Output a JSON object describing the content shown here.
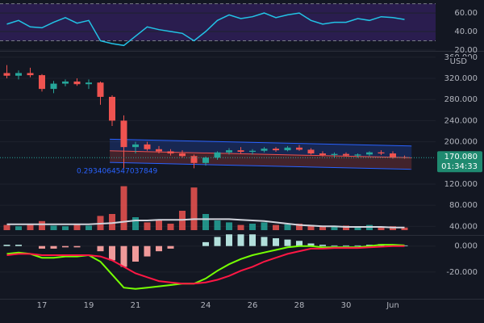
{
  "chart_data": [
    {
      "type": "line",
      "series": [
        {
          "color": "#22c3e6",
          "values": [
            48,
            52,
            45,
            44,
            50,
            55,
            49,
            52,
            30,
            27,
            25,
            35,
            45,
            42,
            40,
            38,
            30,
            40,
            52,
            58,
            54,
            56,
            60,
            55,
            58,
            60,
            52,
            48,
            50,
            50,
            54,
            52,
            56,
            55,
            53
          ]
        }
      ],
      "ylim": [
        20,
        74
      ],
      "yticks": [
        {
          "value": 60,
          "label": "60.00"
        },
        {
          "value": 40,
          "label": "40.00"
        },
        {
          "value": 20,
          "label": "20.00"
        }
      ],
      "band": [
        30,
        70
      ],
      "band_color": "#2a1d4f"
    },
    {
      "type": "candlestick",
      "x": [
        15.5,
        16,
        16.5,
        17,
        17.5,
        18,
        18.5,
        19,
        19.5,
        20,
        20.5,
        21,
        21.5,
        22,
        22.5,
        23,
        23.5,
        24,
        24.5,
        25,
        25.5,
        26,
        26.5,
        27,
        27.5,
        28,
        28.5,
        29,
        29.5,
        30,
        30.5,
        31,
        31.5,
        32,
        32.5
      ],
      "open": [
        330,
        325,
        330,
        326,
        300,
        310,
        314,
        309,
        312,
        285,
        240,
        190,
        195,
        186,
        182,
        178,
        173,
        160,
        170,
        180,
        184,
        181,
        183,
        187,
        184,
        189,
        185,
        178,
        175,
        177,
        174,
        176,
        180,
        178,
        171
      ],
      "high": [
        345,
        335,
        340,
        328,
        315,
        318,
        320,
        318,
        314,
        288,
        250,
        200,
        200,
        192,
        186,
        184,
        176,
        172,
        182,
        188,
        190,
        186,
        190,
        190,
        192,
        194,
        188,
        182,
        180,
        180,
        178,
        182,
        184,
        182,
        174
      ],
      "low": [
        320,
        318,
        322,
        295,
        292,
        305,
        306,
        300,
        270,
        230,
        150,
        178,
        183,
        178,
        174,
        170,
        150,
        155,
        166,
        176,
        178,
        176,
        180,
        181,
        182,
        183,
        176,
        172,
        170,
        172,
        170,
        173,
        175,
        168,
        168
      ],
      "close": [
        325,
        330,
        326,
        300,
        310,
        314,
        309,
        312,
        285,
        240,
        190,
        195,
        186,
        182,
        178,
        173,
        160,
        170,
        180,
        184,
        181,
        183,
        187,
        184,
        189,
        185,
        178,
        175,
        177,
        174,
        176,
        180,
        178,
        170,
        170.08
      ],
      "up_color": "#26a69a",
      "down_color": "#ef5350",
      "ylim": [
        25.3,
        368.9
      ],
      "yticks": [
        {
          "value": 360,
          "label": "360.000"
        },
        {
          "value": 320,
          "label": "320.000"
        },
        {
          "value": 280,
          "label": "280.000"
        },
        {
          "value": 240,
          "label": "240.000"
        },
        {
          "value": 200,
          "label": "200.000"
        },
        {
          "value": 120,
          "label": "120.000"
        },
        {
          "value": 80,
          "label": "80.000"
        },
        {
          "value": 40,
          "label": "40.000"
        }
      ],
      "unit_label": "USD",
      "last_price": {
        "value": 170.08,
        "label": "170.080"
      },
      "countdown": "01:34:33",
      "channel": {
        "x": [
          19.9,
          32.8
        ],
        "upper": [
          205,
          192
        ],
        "middle": [
          183,
          170
        ],
        "lower": [
          161,
          148
        ]
      },
      "annotation": "0.2934064547037849"
    },
    {
      "type": "volume",
      "values": [
        8,
        6,
        10,
        14,
        7,
        6,
        9,
        7,
        22,
        25,
        68,
        20,
        12,
        15,
        10,
        30,
        66,
        25,
        15,
        12,
        8,
        10,
        12,
        8,
        9,
        10,
        8,
        7,
        6,
        7,
        6,
        8,
        5,
        6,
        4
      ],
      "ma": [
        9,
        9,
        9,
        9,
        9,
        9,
        9,
        9,
        10,
        11,
        13,
        15,
        15,
        16,
        16,
        16,
        17,
        17,
        17,
        17,
        16,
        15,
        14,
        12,
        10,
        8,
        7,
        6,
        6,
        5,
        5,
        5,
        5,
        4,
        4
      ],
      "ma_color": "#d1d4dc",
      "ylim": [
        0,
        100
      ]
    },
    {
      "type": "macd",
      "hist": [
        1,
        1,
        0,
        -2,
        -2,
        -1,
        -1,
        0,
        -4,
        -11,
        -16,
        -12,
        -8,
        -4,
        -2,
        0,
        0,
        3,
        7,
        9,
        9,
        9,
        7,
        6,
        5,
        4,
        2,
        1,
        0.5,
        0.5,
        0.5,
        1,
        1.5,
        1,
        0.5
      ],
      "hist_colors": [
        "#b2dfdb",
        "#ef9a9a"
      ],
      "series": [
        {
          "color": "#76ff03",
          "values": [
            -6,
            -5,
            -6,
            -9,
            -9,
            -8,
            -8,
            -7,
            -12,
            -22,
            -32,
            -33,
            -32,
            -31,
            -30,
            -29,
            -29,
            -25,
            -19,
            -14,
            -10,
            -7,
            -5,
            -3,
            -1,
            0,
            0,
            -1,
            -1,
            -1,
            -1,
            0,
            1,
            1,
            0.5
          ]
        },
        {
          "color": "#ff1744",
          "values": [
            -7,
            -6,
            -6,
            -7,
            -7,
            -7,
            -7,
            -7,
            -8,
            -11,
            -16,
            -21,
            -24,
            -27,
            -28,
            -29,
            -29,
            -28,
            -26,
            -23,
            -19,
            -16,
            -12,
            -9,
            -6,
            -4,
            -2,
            -2,
            -1.5,
            -1.5,
            -1.5,
            -1,
            -0.5,
            0,
            0
          ]
        }
      ],
      "ylim": [
        -40.6,
        7.9
      ],
      "yticks": [
        {
          "value": 0,
          "label": "0.000"
        },
        {
          "value": -20,
          "label": "-20.000"
        }
      ],
      "xticks": [
        17,
        19,
        21,
        24,
        26,
        28,
        30,
        {
          "value": 32,
          "label": "Jun"
        }
      ]
    }
  ]
}
